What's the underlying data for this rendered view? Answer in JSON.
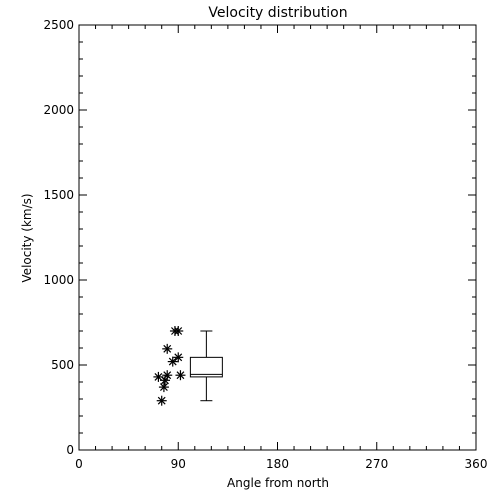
{
  "chart_data": {
    "type": "scatter",
    "title": "Velocity distribution",
    "xlabel": "Angle from north",
    "ylabel": "Velocity (km/s)",
    "xlim": [
      0,
      360
    ],
    "ylim": [
      0,
      2500
    ],
    "xticks": [
      0,
      90,
      180,
      270,
      360
    ],
    "yticks": [
      0,
      500,
      1000,
      1500,
      2000,
      2500
    ],
    "grid": false,
    "points": [
      {
        "x": 72,
        "y": 430
      },
      {
        "x": 75,
        "y": 290
      },
      {
        "x": 77,
        "y": 370
      },
      {
        "x": 78,
        "y": 410
      },
      {
        "x": 80,
        "y": 440
      },
      {
        "x": 80,
        "y": 595
      },
      {
        "x": 85,
        "y": 520
      },
      {
        "x": 87,
        "y": 700
      },
      {
        "x": 90,
        "y": 700
      },
      {
        "x": 90,
        "y": 545
      },
      {
        "x": 92,
        "y": 440
      }
    ],
    "boxplot": {
      "x_left": 101,
      "x_right": 130,
      "whisker_low": 290,
      "q1": 430,
      "median": 445,
      "q3": 545,
      "whisker_high": 700
    }
  }
}
